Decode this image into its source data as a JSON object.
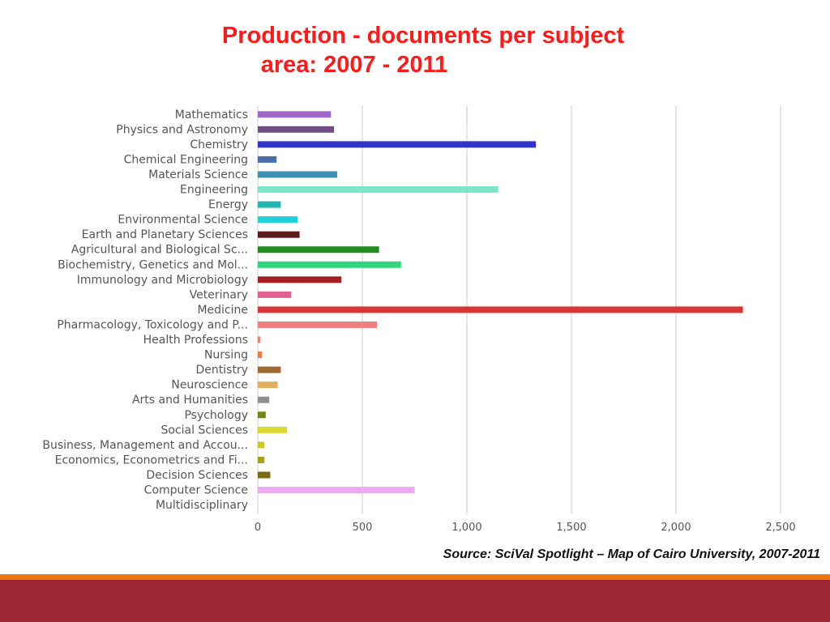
{
  "slide": {
    "title_line1": "Production - documents per subject",
    "title_line2": "area: 2007 - 2011",
    "source": "Source:  SciVal Spotlight – Map of Cairo University, 2007-2011",
    "colors": {
      "title": "#ff1a1a",
      "accent_band": "#e8770e",
      "footer_band": "#9e2634"
    }
  },
  "chart_data": {
    "type": "bar",
    "orientation": "horizontal",
    "title": "Production - documents per subject area: 2007 - 2011",
    "xlim": [
      0,
      2500
    ],
    "xticks": [
      0,
      500,
      1000,
      1500,
      2000,
      2500
    ],
    "xtick_labels": [
      "0",
      "500",
      "1,000",
      "1,500",
      "2,000",
      "2,500"
    ],
    "grid": true,
    "categories": [
      "Mathematics",
      "Physics and Astronomy",
      "Chemistry",
      "Chemical Engineering",
      "Materials Science",
      "Engineering",
      "Energy",
      "Environmental Science",
      "Earth and Planetary Sciences",
      "Agricultural and Biological Sc...",
      "Biochemistry, Genetics and Mol...",
      "Immunology and Microbiology",
      "Veterinary",
      "Medicine",
      "Pharmacology, Toxicology and P...",
      "Health Professions",
      "Nursing",
      "Dentistry",
      "Neuroscience",
      "Arts and Humanities",
      "Psychology",
      "Social Sciences",
      "Business, Management and Accou...",
      "Economics, Econometrics and Fi...",
      "Decision Sciences",
      "Computer Science",
      "Multidisciplinary"
    ],
    "values": [
      350,
      365,
      1330,
      90,
      380,
      1150,
      110,
      190,
      200,
      580,
      685,
      400,
      160,
      2320,
      570,
      12,
      20,
      110,
      95,
      55,
      38,
      140,
      32,
      32,
      60,
      750,
      0
    ],
    "colors": [
      "#a066c8",
      "#6e4f86",
      "#3333cc",
      "#4a6fa8",
      "#3f8fb0",
      "#7ee5c8",
      "#1fb5b5",
      "#1fd0d8",
      "#5c1a1a",
      "#228b22",
      "#2fd67a",
      "#a02020",
      "#e06090",
      "#d93535",
      "#f08080",
      "#f08070",
      "#e88040",
      "#a06830",
      "#e0b060",
      "#909090",
      "#6a8a10",
      "#d8d830",
      "#d0c820",
      "#a8a020",
      "#7a6a10",
      "#eeaaee",
      "#c0c0c0"
    ]
  }
}
